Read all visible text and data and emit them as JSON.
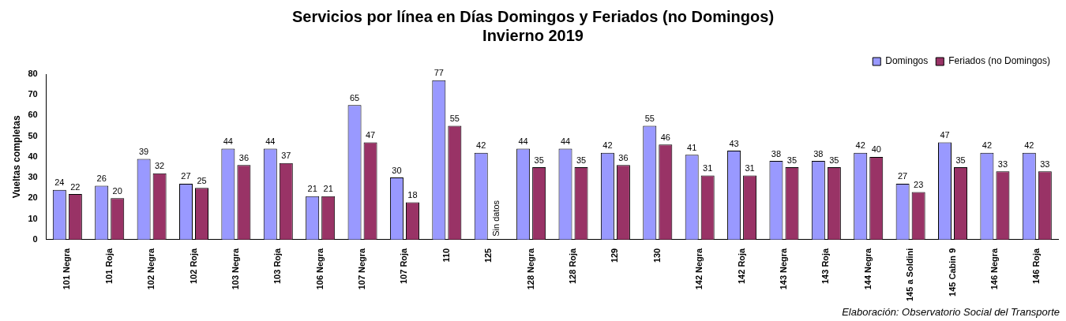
{
  "chart_data": {
    "type": "bar",
    "title": "Servicios por línea en Días Domingos y Feriados (no Domingos)",
    "subtitle": "Invierno 2019",
    "ylabel": "Vueltas completas",
    "categories": [
      "101 Negra",
      "101 Roja",
      "102 Negra",
      "102 Roja",
      "103 Negra",
      "103 Roja",
      "106 Negra",
      "107 Negra",
      "107 Roja",
      "110",
      "125",
      "128 Negra",
      "128 Roja",
      "129",
      "130",
      "142 Negra",
      "142 Roja",
      "143 Negra",
      "143 Roja",
      "144 Negra",
      "145 a Soldini",
      "145 Cabin 9",
      "146 Negra",
      "146 Roja"
    ],
    "series": [
      {
        "name": "Domingos",
        "color": "#9999ff",
        "values": [
          24,
          26,
          39,
          27,
          44,
          44,
          21,
          65,
          30,
          77,
          42,
          44,
          44,
          42,
          55,
          41,
          43,
          38,
          38,
          42,
          27,
          47,
          42,
          42
        ]
      },
      {
        "name": "Feriados (no Domingos)",
        "color": "#993366",
        "values": [
          22,
          20,
          32,
          25,
          36,
          37,
          21,
          47,
          18,
          55,
          null,
          35,
          35,
          36,
          46,
          31,
          31,
          35,
          35,
          40,
          23,
          35,
          33,
          33
        ]
      }
    ],
    "ylim": [
      0,
      80
    ],
    "yticks": [
      0,
      10,
      20,
      30,
      40,
      50,
      60,
      70,
      80
    ],
    "grid": false,
    "legend": "top right",
    "data_labels": true,
    "annotations": [
      {
        "text": "Sin datos",
        "x": "125",
        "y": 0
      },
      "Elaboración: Observatorio Social del Transporte"
    ]
  }
}
